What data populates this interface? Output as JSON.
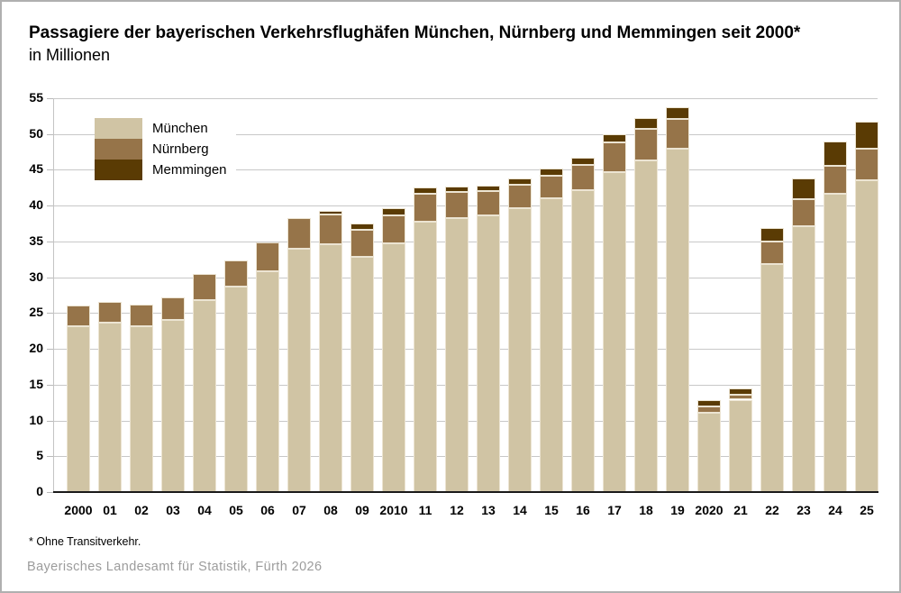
{
  "title": "Passagiere der bayerischen Verkehrsflughäfen München, Nürnberg und Memmingen seit 2000*",
  "subtitle": "in Millionen",
  "footnote": "* Ohne Transitverkehr.",
  "source": "Bayerisches Landesamt für Statistik, Fürth 2026",
  "colors": {
    "background": "#ffffff",
    "frame_border": "#b0b0b0",
    "gridline": "#c8c8c8",
    "axis_line": "#1a1a1a",
    "segment_stroke": "#ece4d2",
    "source_text": "#9c9c9c"
  },
  "chart_data": {
    "type": "bar",
    "stacked": true,
    "title": "Passagiere der bayerischen Verkehrsflughäfen München, Nürnberg und Memmingen seit 2000*",
    "subtitle": "in Millionen",
    "xlabel": "",
    "ylabel": "in Millionen",
    "ylim": [
      0,
      55
    ],
    "y_ticks": [
      0,
      5,
      10,
      15,
      20,
      25,
      30,
      35,
      40,
      45,
      50,
      55
    ],
    "grid": true,
    "legend_position": "top-left-inside",
    "categories": [
      "2000",
      "01",
      "02",
      "03",
      "04",
      "05",
      "06",
      "07",
      "08",
      "09",
      "2010",
      "11",
      "12",
      "13",
      "14",
      "15",
      "16",
      "17",
      "18",
      "19",
      "2020",
      "21",
      "22",
      "23",
      "24",
      "25"
    ],
    "series": [
      {
        "name": "München",
        "key": "muenchen",
        "color": "#d0c4a4",
        "values": [
          23.2,
          23.6,
          23.1,
          24.1,
          26.8,
          28.7,
          30.8,
          34.0,
          34.6,
          32.8,
          34.7,
          37.7,
          38.3,
          38.6,
          39.7,
          41.0,
          42.2,
          44.7,
          46.3,
          48.0,
          11.1,
          12.9,
          31.8,
          37.1,
          41.6,
          43.5
        ]
      },
      {
        "name": "Nürnberg",
        "key": "nuernberg",
        "color": "#967449",
        "values": [
          2.9,
          3.0,
          3.1,
          3.1,
          3.6,
          3.7,
          4.0,
          4.2,
          4.2,
          3.8,
          3.9,
          3.9,
          3.6,
          3.4,
          3.2,
          3.2,
          3.5,
          4.1,
          4.4,
          4.1,
          0.8,
          0.7,
          3.2,
          3.8,
          4.0,
          4.5
        ]
      },
      {
        "name": "Memmingen",
        "key": "memmingen",
        "color": "#5a3b04",
        "values": [
          0,
          0,
          0,
          0,
          0,
          0,
          0,
          0,
          0.5,
          0.9,
          1.0,
          0.9,
          0.8,
          0.8,
          0.9,
          1.0,
          1.0,
          1.2,
          1.5,
          1.7,
          0.9,
          0.9,
          1.9,
          2.9,
          3.4,
          3.7
        ]
      }
    ]
  }
}
